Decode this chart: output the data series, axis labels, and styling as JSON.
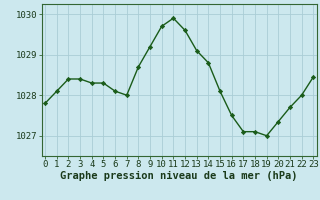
{
  "x": [
    0,
    1,
    2,
    3,
    4,
    5,
    6,
    7,
    8,
    9,
    10,
    11,
    12,
    13,
    14,
    15,
    16,
    17,
    18,
    19,
    20,
    21,
    22,
    23
  ],
  "y": [
    1027.8,
    1028.1,
    1028.4,
    1028.4,
    1028.3,
    1028.3,
    1028.1,
    1028.0,
    1028.7,
    1029.2,
    1029.7,
    1029.9,
    1029.6,
    1029.1,
    1028.8,
    1028.1,
    1027.5,
    1027.1,
    1027.1,
    1027.0,
    1027.35,
    1027.7,
    1028.0,
    1028.45
  ],
  "line_color": "#1a5c1a",
  "marker": "D",
  "marker_size": 2.2,
  "bg_color": "#cce8ee",
  "grid_color": "#aacdd6",
  "ylim": [
    1026.5,
    1030.25
  ],
  "yticks": [
    1027,
    1028,
    1029,
    1030
  ],
  "xlabel": "Graphe pression niveau de la mer (hPa)",
  "xlabel_fontsize": 7.5,
  "tick_fontsize": 6.5,
  "line_width": 1.0,
  "border_color": "#2d6e2d",
  "spine_color": "#336633"
}
